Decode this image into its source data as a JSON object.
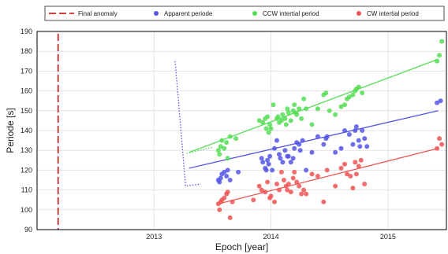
{
  "chart_data": {
    "type": "scatter",
    "title": "",
    "xlabel": "Epoch [year]",
    "ylabel": "Periode [s]",
    "xlim": [
      2012.0,
      2015.5
    ],
    "ylim": [
      90,
      190
    ],
    "xticks": [
      2013,
      2014,
      2015
    ],
    "yticks": [
      90,
      100,
      110,
      120,
      130,
      140,
      150,
      160,
      170,
      180,
      190
    ],
    "grid": true,
    "legend_position": "top",
    "final_anomaly": {
      "name": "Final anomaly",
      "x": 2012.18,
      "color": "#cc0000"
    },
    "series": [
      {
        "name": "Apparent periode",
        "color": "#5555e6",
        "fit": [
          [
            2013.3,
            121
          ],
          [
            2015.43,
            150
          ]
        ],
        "fit_extension": [
          [
            2013.18,
            175
          ],
          [
            2013.27,
            112
          ],
          [
            2013.4,
            113
          ]
        ],
        "points": [
          [
            2013.55,
            115
          ],
          [
            2013.56,
            114
          ],
          [
            2013.57,
            116
          ],
          [
            2013.58,
            118
          ],
          [
            2013.6,
            119
          ],
          [
            2013.62,
            117
          ],
          [
            2013.63,
            120
          ],
          [
            2013.65,
            115
          ],
          [
            2013.72,
            119
          ],
          [
            2013.92,
            126
          ],
          [
            2013.93,
            124
          ],
          [
            2013.95,
            121
          ],
          [
            2013.96,
            120
          ],
          [
            2013.97,
            125
          ],
          [
            2013.98,
            123
          ],
          [
            2013.99,
            127
          ],
          [
            2014.01,
            120
          ],
          [
            2014.03,
            131
          ],
          [
            2014.05,
            135
          ],
          [
            2014.07,
            128
          ],
          [
            2014.08,
            126
          ],
          [
            2014.1,
            124
          ],
          [
            2014.12,
            130
          ],
          [
            2014.14,
            127
          ],
          [
            2014.15,
            127
          ],
          [
            2014.17,
            124
          ],
          [
            2014.19,
            126
          ],
          [
            2014.2,
            131
          ],
          [
            2014.22,
            134
          ],
          [
            2014.24,
            133
          ],
          [
            2014.25,
            130
          ],
          [
            2014.27,
            135
          ],
          [
            2014.3,
            120
          ],
          [
            2014.35,
            129
          ],
          [
            2014.4,
            137
          ],
          [
            2014.45,
            133
          ],
          [
            2014.47,
            136
          ],
          [
            2014.48,
            137
          ],
          [
            2014.55,
            129
          ],
          [
            2014.6,
            131
          ],
          [
            2014.63,
            140
          ],
          [
            2014.67,
            138
          ],
          [
            2014.7,
            133
          ],
          [
            2014.72,
            140
          ],
          [
            2014.73,
            142
          ],
          [
            2014.75,
            135
          ],
          [
            2014.76,
            132
          ],
          [
            2014.78,
            140
          ],
          [
            2014.8,
            136
          ],
          [
            2014.82,
            132
          ],
          [
            2015.42,
            154
          ],
          [
            2015.45,
            155
          ]
        ]
      },
      {
        "name": "CCW intertial period",
        "color": "#55dd55",
        "fit": [
          [
            2013.3,
            129
          ],
          [
            2015.43,
            176
          ]
        ],
        "fit_extension": [
          [
            2013.28,
            128.5
          ],
          [
            2013.5,
            131.5
          ]
        ],
        "points": [
          [
            2013.55,
            130
          ],
          [
            2013.56,
            128
          ],
          [
            2013.57,
            132
          ],
          [
            2013.58,
            135
          ],
          [
            2013.6,
            131
          ],
          [
            2013.62,
            134
          ],
          [
            2013.63,
            126
          ],
          [
            2013.65,
            137
          ],
          [
            2013.7,
            136
          ],
          [
            2013.9,
            145
          ],
          [
            2013.93,
            144
          ],
          [
            2013.95,
            146
          ],
          [
            2013.96,
            141
          ],
          [
            2013.97,
            147
          ],
          [
            2013.98,
            139
          ],
          [
            2013.99,
            143
          ],
          [
            2014.0,
            141
          ],
          [
            2014.02,
            153
          ],
          [
            2014.05,
            146
          ],
          [
            2014.06,
            147
          ],
          [
            2014.07,
            144
          ],
          [
            2014.09,
            145
          ],
          [
            2014.1,
            148
          ],
          [
            2014.12,
            146
          ],
          [
            2014.13,
            143
          ],
          [
            2014.14,
            151
          ],
          [
            2014.15,
            149
          ],
          [
            2014.17,
            145
          ],
          [
            2014.19,
            150
          ],
          [
            2014.2,
            153
          ],
          [
            2014.21,
            149
          ],
          [
            2014.22,
            148
          ],
          [
            2014.24,
            151
          ],
          [
            2014.26,
            146
          ],
          [
            2014.28,
            156
          ],
          [
            2014.3,
            151
          ],
          [
            2014.35,
            143
          ],
          [
            2014.4,
            151
          ],
          [
            2014.45,
            158
          ],
          [
            2014.47,
            159
          ],
          [
            2014.5,
            150
          ],
          [
            2014.55,
            148
          ],
          [
            2014.6,
            152
          ],
          [
            2014.63,
            153
          ],
          [
            2014.65,
            156
          ],
          [
            2014.67,
            157
          ],
          [
            2014.7,
            158
          ],
          [
            2014.72,
            160
          ],
          [
            2014.73,
            161
          ],
          [
            2014.75,
            162
          ],
          [
            2014.78,
            159
          ],
          [
            2015.42,
            175
          ],
          [
            2015.44,
            178
          ],
          [
            2015.46,
            185
          ]
        ]
      },
      {
        "name": "CW intertial period",
        "color": "#ee5555",
        "fit": [
          [
            2013.55,
            103
          ],
          [
            2015.43,
            131
          ]
        ],
        "points": [
          [
            2013.55,
            103
          ],
          [
            2013.56,
            100
          ],
          [
            2013.57,
            104
          ],
          [
            2013.58,
            105
          ],
          [
            2013.6,
            106
          ],
          [
            2013.62,
            108
          ],
          [
            2013.63,
            109
          ],
          [
            2013.65,
            96
          ],
          [
            2013.67,
            104
          ],
          [
            2013.85,
            105
          ],
          [
            2013.9,
            112
          ],
          [
            2013.92,
            110
          ],
          [
            2013.95,
            109
          ],
          [
            2013.97,
            114
          ],
          [
            2013.99,
            106
          ],
          [
            2014.0,
            107
          ],
          [
            2014.03,
            104
          ],
          [
            2014.05,
            113
          ],
          [
            2014.07,
            110
          ],
          [
            2014.09,
            119
          ],
          [
            2014.11,
            115
          ],
          [
            2014.13,
            112
          ],
          [
            2014.14,
            110
          ],
          [
            2014.15,
            113
          ],
          [
            2014.17,
            109
          ],
          [
            2014.19,
            116
          ],
          [
            2014.2,
            119
          ],
          [
            2014.22,
            114
          ],
          [
            2014.24,
            112
          ],
          [
            2014.26,
            108
          ],
          [
            2014.28,
            110
          ],
          [
            2014.3,
            108
          ],
          [
            2014.35,
            118
          ],
          [
            2014.4,
            117
          ],
          [
            2014.45,
            104
          ],
          [
            2014.48,
            120
          ],
          [
            2014.55,
            112
          ],
          [
            2014.6,
            121
          ],
          [
            2014.63,
            123
          ],
          [
            2014.65,
            118
          ],
          [
            2014.68,
            117
          ],
          [
            2014.7,
            111
          ],
          [
            2014.72,
            124
          ],
          [
            2014.73,
            118
          ],
          [
            2014.75,
            122
          ],
          [
            2014.77,
            125
          ],
          [
            2014.8,
            113
          ],
          [
            2015.42,
            131
          ],
          [
            2015.44,
            136
          ],
          [
            2015.46,
            133
          ]
        ]
      }
    ]
  }
}
